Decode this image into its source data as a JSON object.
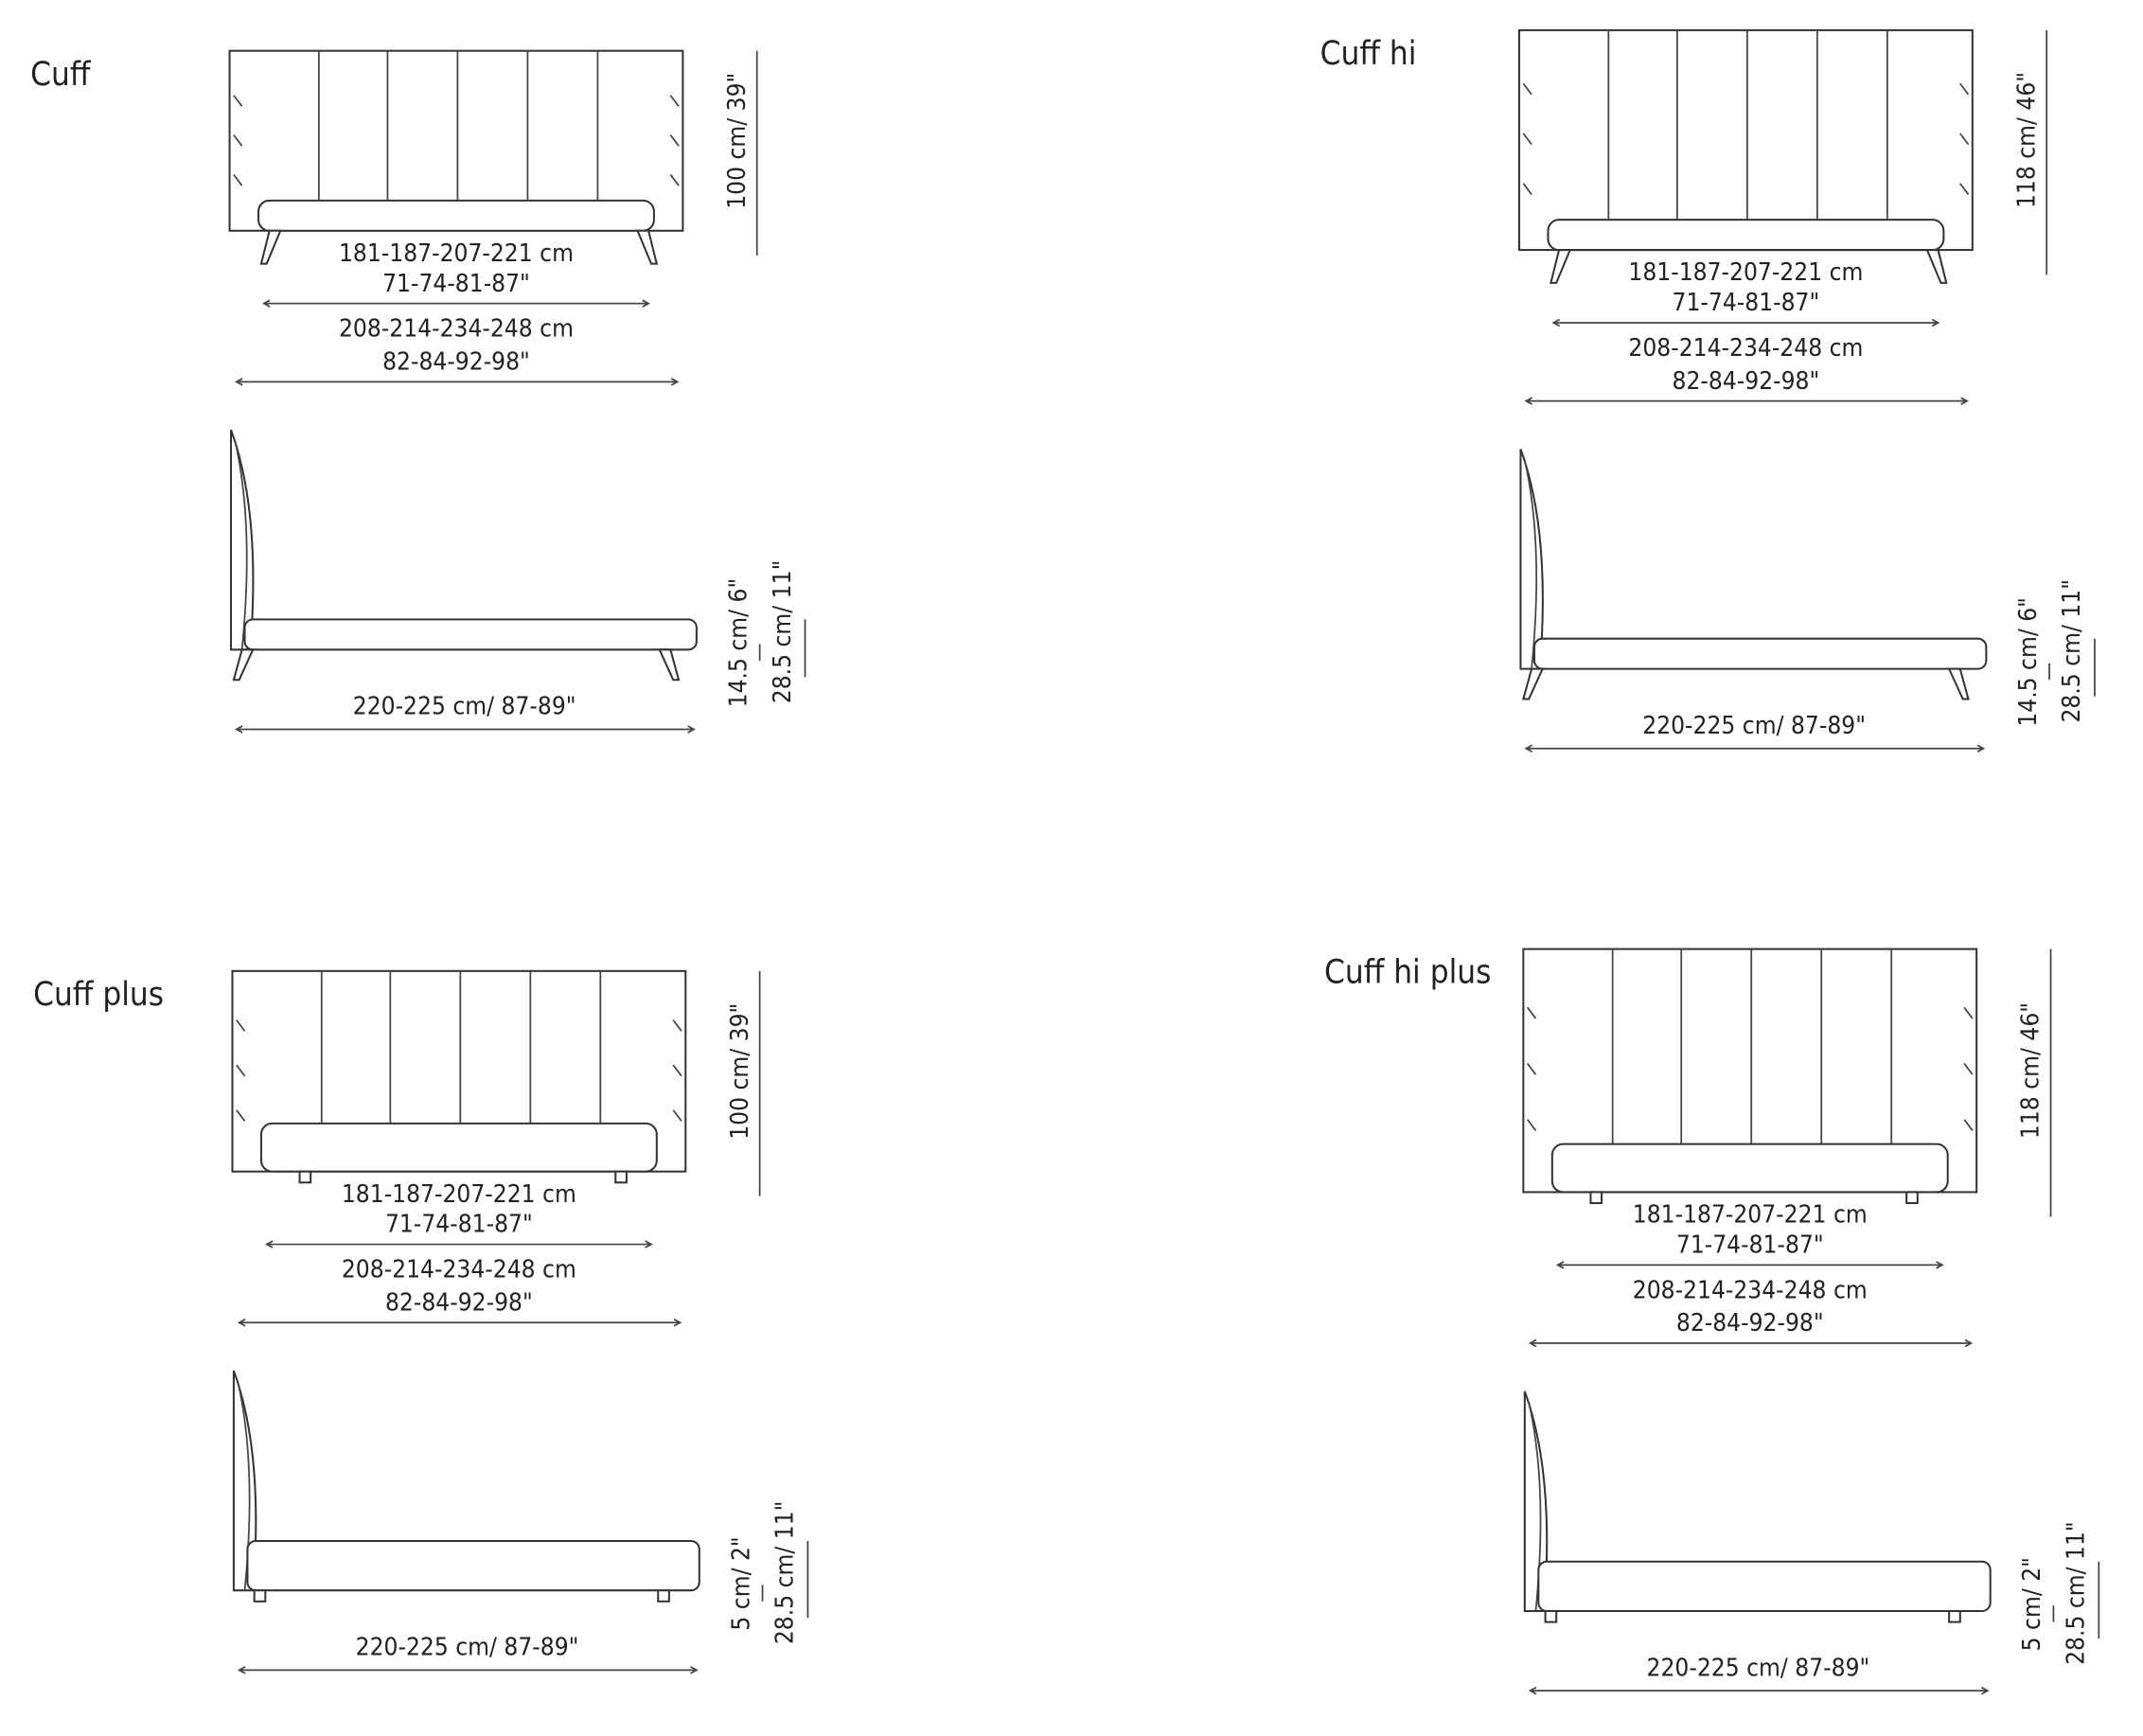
{
  "panels": [
    {
      "name": "Cuff",
      "front": {
        "inner_width_cm": "181-187-207-221 cm",
        "inner_width_in": "71-74-81-87\"",
        "outer_width_cm": "208-214-234-248 cm",
        "outer_width_in": "82-84-92-98\"",
        "height": "100 cm/ 39\""
      },
      "side": {
        "length": "220-225 cm/ 87-89\"",
        "base_height": "14.5 cm/ 6\"",
        "total_height": "28.5 cm/ 11\""
      }
    },
    {
      "name": "Cuff hi",
      "front": {
        "inner_width_cm": "181-187-207-221 cm",
        "inner_width_in": "71-74-81-87\"",
        "outer_width_cm": "208-214-234-248 cm",
        "outer_width_in": "82-84-92-98\"",
        "height": "118 cm/ 46\""
      },
      "side": {
        "length": "220-225 cm/ 87-89\"",
        "base_height": "14.5 cm/ 6\"",
        "total_height": "28.5 cm/ 11\""
      }
    },
    {
      "name": "Cuff plus",
      "front": {
        "inner_width_cm": "181-187-207-221 cm",
        "inner_width_in": "71-74-81-87\"",
        "outer_width_cm": "208-214-234-248 cm",
        "outer_width_in": "82-84-92-98\"",
        "height": "100 cm/ 39\""
      },
      "side": {
        "length": "220-225 cm/ 87-89\"",
        "base_height": "5 cm/ 2\"",
        "total_height": "28.5 cm/ 11\""
      }
    },
    {
      "name": "Cuff hi plus",
      "front": {
        "inner_width_cm": "181-187-207-221 cm",
        "inner_width_in": "71-74-81-87\"",
        "outer_width_cm": "208-214-234-248 cm",
        "outer_width_in": "82-84-92-98\"",
        "height": "118 cm/ 46\""
      },
      "side": {
        "length": "220-225 cm/ 87-89\"",
        "base_height": "5 cm/ 2\"",
        "total_height": "28.5 cm/ 11\""
      }
    }
  ]
}
